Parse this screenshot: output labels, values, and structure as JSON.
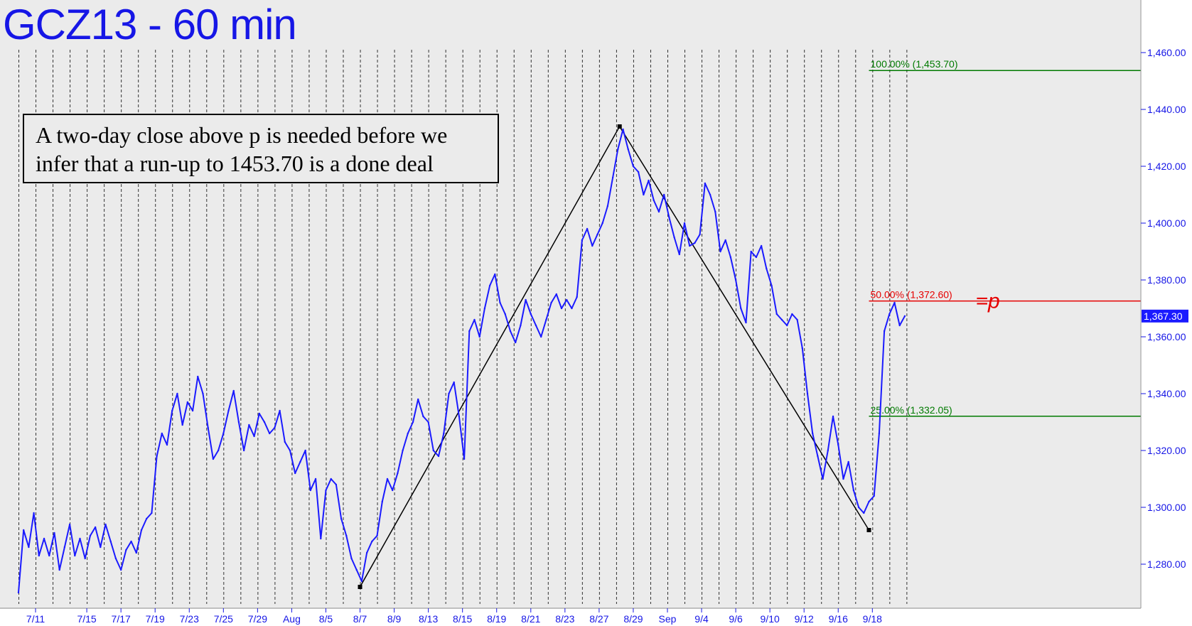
{
  "chart_data": {
    "type": "line",
    "title": "GCZ13 - 60 min",
    "annotation": [
      "A two-day close above p is needed before we",
      "infer that a run-up to 1453.70 is a done deal"
    ],
    "ylim": [
      1268,
      1468
    ],
    "y_ticks": [
      "1,280.00",
      "1,300.00",
      "1,320.00",
      "1,340.00",
      "1,360.00",
      "1,380.00",
      "1,400.00",
      "1,420.00",
      "1,440.00",
      "1,460.00"
    ],
    "y_tick_values": [
      1280,
      1300,
      1320,
      1340,
      1360,
      1380,
      1400,
      1420,
      1440,
      1460
    ],
    "x_labels": [
      "7/11",
      "7/15",
      "7/17",
      "7/19",
      "7/23",
      "7/25",
      "7/29",
      "Aug",
      "8/5",
      "8/7",
      "8/9",
      "8/13",
      "8/15",
      "8/19",
      "8/21",
      "8/23",
      "8/27",
      "8/29",
      "Sep",
      "9/4",
      "9/6",
      "9/10",
      "9/12",
      "9/16",
      "9/18"
    ],
    "x_label_index": [
      1,
      4,
      6,
      8,
      10,
      12,
      14,
      16,
      18,
      20,
      22,
      24,
      26,
      28,
      30,
      32,
      34,
      36,
      38,
      40,
      42,
      44,
      46,
      48,
      50
    ],
    "days_total": 52,
    "last_price": "1,367.30",
    "last_price_value": 1367.3,
    "series": [
      {
        "color": "#1a1aff",
        "points": [
          [
            0.0,
            1270
          ],
          [
            0.3,
            1292
          ],
          [
            0.6,
            1286
          ],
          [
            0.9,
            1298
          ],
          [
            1.2,
            1283
          ],
          [
            1.5,
            1289
          ],
          [
            1.8,
            1283
          ],
          [
            2.1,
            1291
          ],
          [
            2.4,
            1278
          ],
          [
            2.7,
            1286
          ],
          [
            3.0,
            1294
          ],
          [
            3.3,
            1283
          ],
          [
            3.6,
            1289
          ],
          [
            3.9,
            1282
          ],
          [
            4.2,
            1290
          ],
          [
            4.5,
            1293
          ],
          [
            4.8,
            1286
          ],
          [
            5.1,
            1294
          ],
          [
            5.4,
            1288
          ],
          [
            5.7,
            1282
          ],
          [
            6.0,
            1278
          ],
          [
            6.3,
            1285
          ],
          [
            6.6,
            1288
          ],
          [
            6.9,
            1284
          ],
          [
            7.2,
            1292
          ],
          [
            7.5,
            1296
          ],
          [
            7.8,
            1298
          ],
          [
            8.1,
            1318
          ],
          [
            8.4,
            1326
          ],
          [
            8.7,
            1322
          ],
          [
            9.0,
            1334
          ],
          [
            9.3,
            1340
          ],
          [
            9.6,
            1329
          ],
          [
            9.9,
            1337
          ],
          [
            10.2,
            1334
          ],
          [
            10.5,
            1346
          ],
          [
            10.8,
            1340
          ],
          [
            11.1,
            1328
          ],
          [
            11.4,
            1317
          ],
          [
            11.7,
            1320
          ],
          [
            12.0,
            1326
          ],
          [
            12.3,
            1334
          ],
          [
            12.6,
            1341
          ],
          [
            12.9,
            1330
          ],
          [
            13.2,
            1320
          ],
          [
            13.5,
            1329
          ],
          [
            13.8,
            1325
          ],
          [
            14.1,
            1333
          ],
          [
            14.4,
            1330
          ],
          [
            14.7,
            1326
          ],
          [
            15.0,
            1328
          ],
          [
            15.3,
            1334
          ],
          [
            15.6,
            1323
          ],
          [
            15.9,
            1320
          ],
          [
            16.2,
            1312
          ],
          [
            16.5,
            1316
          ],
          [
            16.8,
            1320
          ],
          [
            17.1,
            1306
          ],
          [
            17.4,
            1310
          ],
          [
            17.7,
            1289
          ],
          [
            18.0,
            1306
          ],
          [
            18.3,
            1310
          ],
          [
            18.6,
            1308
          ],
          [
            18.9,
            1296
          ],
          [
            19.2,
            1290
          ],
          [
            19.5,
            1282
          ],
          [
            19.8,
            1278
          ],
          [
            20.1,
            1274
          ],
          [
            20.4,
            1284
          ],
          [
            20.7,
            1288
          ],
          [
            21.0,
            1290
          ],
          [
            21.3,
            1302
          ],
          [
            21.6,
            1310
          ],
          [
            21.9,
            1306
          ],
          [
            22.2,
            1312
          ],
          [
            22.5,
            1320
          ],
          [
            22.8,
            1326
          ],
          [
            23.1,
            1330
          ],
          [
            23.4,
            1338
          ],
          [
            23.7,
            1332
          ],
          [
            24.0,
            1330
          ],
          [
            24.3,
            1320
          ],
          [
            24.6,
            1318
          ],
          [
            24.9,
            1326
          ],
          [
            25.2,
            1340
          ],
          [
            25.5,
            1344
          ],
          [
            25.8,
            1332
          ],
          [
            26.1,
            1317
          ],
          [
            26.4,
            1362
          ],
          [
            26.7,
            1366
          ],
          [
            27.0,
            1360
          ],
          [
            27.3,
            1370
          ],
          [
            27.6,
            1378
          ],
          [
            27.9,
            1382
          ],
          [
            28.2,
            1372
          ],
          [
            28.5,
            1368
          ],
          [
            28.8,
            1362
          ],
          [
            29.1,
            1358
          ],
          [
            29.4,
            1364
          ],
          [
            29.7,
            1373
          ],
          [
            30.0,
            1368
          ],
          [
            30.3,
            1364
          ],
          [
            30.6,
            1360
          ],
          [
            30.9,
            1366
          ],
          [
            31.2,
            1372
          ],
          [
            31.5,
            1375
          ],
          [
            31.8,
            1370
          ],
          [
            32.1,
            1373
          ],
          [
            32.4,
            1370
          ],
          [
            32.7,
            1374
          ],
          [
            33.0,
            1394
          ],
          [
            33.3,
            1398
          ],
          [
            33.6,
            1392
          ],
          [
            33.9,
            1396
          ],
          [
            34.2,
            1400
          ],
          [
            34.5,
            1406
          ],
          [
            34.8,
            1416
          ],
          [
            35.1,
            1426
          ],
          [
            35.4,
            1433
          ],
          [
            35.7,
            1426
          ],
          [
            36.0,
            1420
          ],
          [
            36.3,
            1418
          ],
          [
            36.6,
            1410
          ],
          [
            36.9,
            1415
          ],
          [
            37.2,
            1408
          ],
          [
            37.5,
            1404
          ],
          [
            37.8,
            1410
          ],
          [
            38.1,
            1402
          ],
          [
            38.4,
            1395
          ],
          [
            38.7,
            1389
          ],
          [
            39.0,
            1400
          ],
          [
            39.3,
            1392
          ],
          [
            39.6,
            1393
          ],
          [
            39.9,
            1396
          ],
          [
            40.2,
            1414
          ],
          [
            40.5,
            1410
          ],
          [
            40.8,
            1404
          ],
          [
            41.1,
            1390
          ],
          [
            41.4,
            1394
          ],
          [
            41.7,
            1388
          ],
          [
            42.0,
            1380
          ],
          [
            42.3,
            1370
          ],
          [
            42.6,
            1365
          ],
          [
            42.9,
            1390
          ],
          [
            43.2,
            1388
          ],
          [
            43.5,
            1392
          ],
          [
            43.8,
            1384
          ],
          [
            44.1,
            1378
          ],
          [
            44.4,
            1368
          ],
          [
            44.7,
            1366
          ],
          [
            45.0,
            1364
          ],
          [
            45.3,
            1368
          ],
          [
            45.6,
            1366
          ],
          [
            45.9,
            1356
          ],
          [
            46.2,
            1340
          ],
          [
            46.5,
            1326
          ],
          [
            46.8,
            1318
          ],
          [
            47.1,
            1310
          ],
          [
            47.4,
            1320
          ],
          [
            47.7,
            1332
          ],
          [
            48.0,
            1322
          ],
          [
            48.3,
            1310
          ],
          [
            48.6,
            1316
          ],
          [
            48.9,
            1306
          ],
          [
            49.2,
            1300
          ],
          [
            49.5,
            1298
          ],
          [
            49.8,
            1302
          ],
          [
            50.1,
            1304
          ],
          [
            50.4,
            1326
          ],
          [
            50.7,
            1362
          ],
          [
            51.0,
            1368
          ],
          [
            51.3,
            1372
          ],
          [
            51.6,
            1364
          ],
          [
            51.9,
            1367.3
          ]
        ]
      }
    ],
    "overlay_lines": [
      {
        "color": "#000000",
        "points": [
          [
            20.0,
            1272
          ],
          [
            35.2,
            1434
          ],
          [
            49.8,
            1292
          ]
        ],
        "markers": true
      }
    ],
    "fib_levels": [
      {
        "label": "100.00% (1,453.70)",
        "value": 1453.7,
        "color": "#007a00"
      },
      {
        "label": "50.00% (1,372.60)",
        "value": 1372.6,
        "color": "#e60000"
      },
      {
        "label": "25.00% (1,332.05)",
        "value": 1332.05,
        "color": "#007a00"
      }
    ],
    "fib_start_day": 49.8,
    "p_marker": {
      "text": "=p",
      "color": "#e60000"
    },
    "colors": {
      "background": "#ebebeb",
      "price": "#1a1aff",
      "axis_text": "#1616e6"
    }
  }
}
